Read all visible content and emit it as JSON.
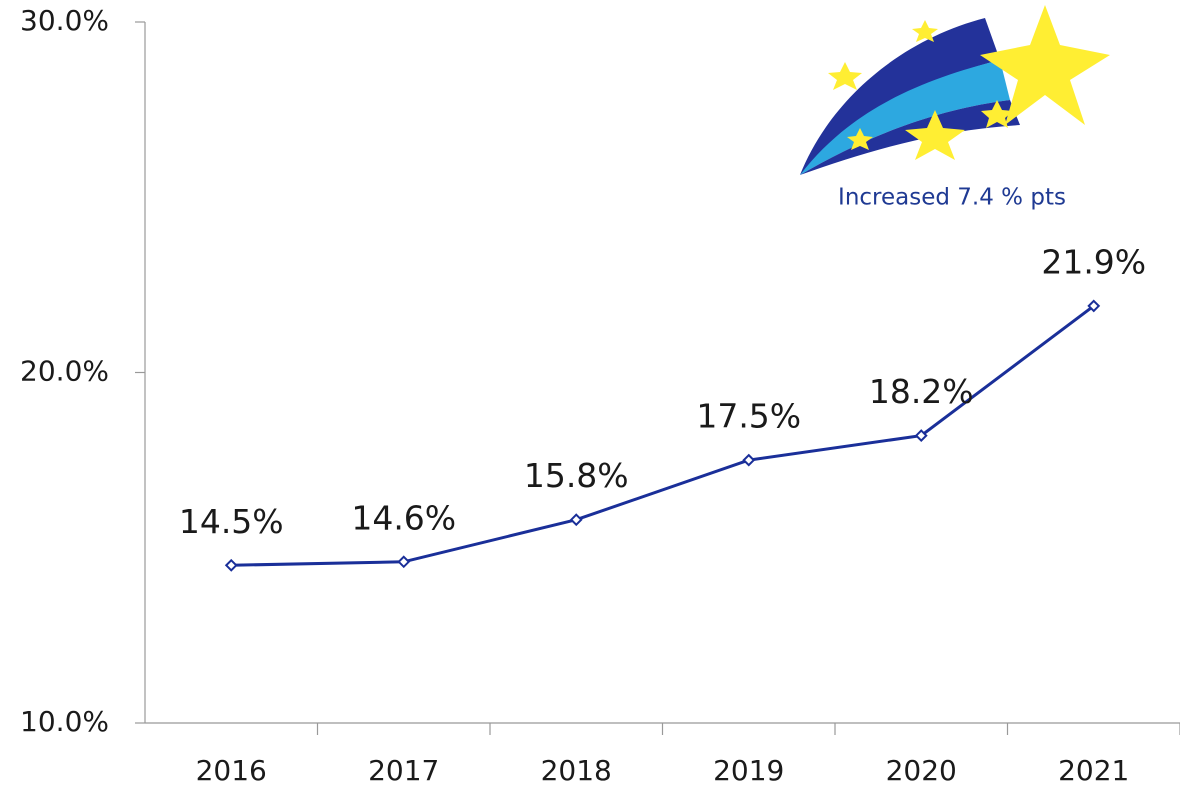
{
  "chart_data": {
    "type": "line",
    "categories": [
      "2016",
      "2017",
      "2018",
      "2019",
      "2020",
      "2021"
    ],
    "series": [
      {
        "color": "#1a2f99",
        "values": [
          14.5,
          14.6,
          15.8,
          17.5,
          18.2,
          21.9
        ],
        "value_labels": [
          "14.5%",
          "14.6%",
          "15.8%",
          "17.5%",
          "18.2%",
          "21.9%"
        ]
      }
    ],
    "ylim": [
      10,
      30
    ],
    "yticks": [
      {
        "value": 10,
        "label": "10.0%"
      },
      {
        "value": 20,
        "label": "20.0%"
      },
      {
        "value": 30,
        "label": "30.0%"
      }
    ],
    "annotations": [
      "Increased 7.4 % pts"
    ]
  }
}
